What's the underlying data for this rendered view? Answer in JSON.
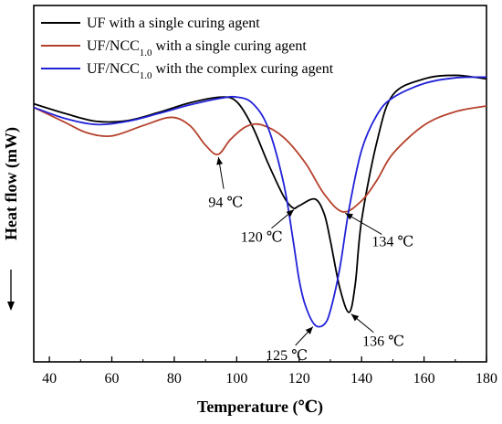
{
  "chart_data": {
    "type": "line",
    "xlabel": "Temperature (℃)",
    "ylabel": "Heat flow (mW)",
    "xlim": [
      35,
      180
    ],
    "ylim": [
      0,
      1
    ],
    "xticks": [
      40,
      60,
      80,
      100,
      120,
      140,
      160,
      180
    ],
    "yticks": [],
    "grid": false,
    "legend_position": "top-left",
    "series": [
      {
        "name": "UF with a single curing agent",
        "color": "#000000",
        "x": [
          35,
          45,
          55,
          65,
          75,
          85,
          95,
          100,
          105,
          110,
          115,
          118,
          120,
          125,
          128,
          130,
          133,
          136,
          138,
          140,
          145,
          150,
          160,
          170,
          180
        ],
        "y": [
          0.724,
          0.697,
          0.675,
          0.677,
          0.7,
          0.727,
          0.743,
          0.73,
          0.661,
          0.558,
          0.465,
          0.432,
          0.438,
          0.457,
          0.416,
          0.34,
          0.208,
          0.139,
          0.22,
          0.397,
          0.621,
          0.749,
          0.794,
          0.804,
          0.794
        ]
      },
      {
        "name": "UF/NCC1.0 with a single curing agent",
        "name_main": "UF/NCC",
        "name_sub": "1.0",
        "name_rest": " with a single curing agent",
        "color": "#b5412c",
        "x": [
          35,
          45,
          52,
          60,
          70,
          79,
          85,
          90,
          94,
          98,
          103,
          108,
          115,
          122,
          128,
          134,
          140,
          145,
          150,
          160,
          170,
          180
        ],
        "y": [
          0.714,
          0.672,
          0.643,
          0.634,
          0.663,
          0.686,
          0.663,
          0.608,
          0.582,
          0.624,
          0.66,
          0.665,
          0.63,
          0.558,
          0.471,
          0.421,
          0.452,
          0.511,
          0.584,
          0.664,
          0.702,
          0.718
        ]
      },
      {
        "name": "UF/NCC1.0 with the complex curing agent",
        "name_main": "UF/NCC",
        "name_sub": "1.0",
        "name_rest": " with the complex curing agent",
        "color": "#2121d8",
        "x": [
          35,
          45,
          55,
          65,
          75,
          85,
          95,
          100,
          105,
          110,
          115,
          118,
          120,
          122,
          125,
          128,
          130,
          133,
          136,
          140,
          145,
          150,
          160,
          170,
          180
        ],
        "y": [
          0.714,
          0.683,
          0.666,
          0.675,
          0.697,
          0.721,
          0.74,
          0.743,
          0.726,
          0.658,
          0.502,
          0.345,
          0.23,
          0.158,
          0.104,
          0.105,
          0.144,
          0.262,
          0.43,
          0.594,
          0.694,
          0.741,
          0.781,
          0.797,
          0.799
        ]
      }
    ],
    "annotations": [
      {
        "text": "94 ℃",
        "target": [
          94,
          0.582
        ],
        "label_at": [
          96.5,
          0.45
        ]
      },
      {
        "text": "120 ℃",
        "target": [
          119,
          0.432
        ],
        "label_at": [
          108,
          0.352
        ]
      },
      {
        "text": "125 ℃",
        "target": [
          125,
          0.104
        ],
        "label_at": [
          116,
          0.02
        ]
      },
      {
        "text": "134 ℃",
        "target": [
          134,
          0.421
        ],
        "label_at": [
          150,
          0.34
        ]
      },
      {
        "text": "136 ℃",
        "target": [
          136,
          0.139
        ],
        "label_at": [
          147,
          0.06
        ]
      }
    ]
  }
}
